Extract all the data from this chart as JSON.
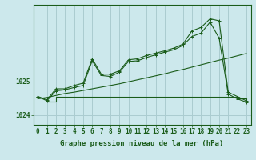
{
  "xlabel": "Graphe pression niveau de la mer (hPa)",
  "background_color": "#cce8ec",
  "grid_color": "#aaccd0",
  "line_color_dark": "#1a5c1a",
  "line_color_light": "#2d8b2d",
  "x_hours": [
    0,
    1,
    2,
    3,
    4,
    5,
    6,
    7,
    8,
    9,
    10,
    11,
    12,
    13,
    14,
    15,
    16,
    17,
    18,
    19,
    20,
    21,
    22,
    23
  ],
  "series_main": [
    1024.55,
    1024.42,
    1024.72,
    1024.75,
    1024.82,
    1024.88,
    1025.62,
    1025.18,
    1025.15,
    1025.28,
    1025.6,
    1025.62,
    1025.72,
    1025.8,
    1025.88,
    1025.95,
    1026.08,
    1026.35,
    1026.45,
    1026.78,
    1026.3,
    1024.62,
    1024.48,
    1024.38
  ],
  "series_max": [
    1024.55,
    1024.45,
    1024.78,
    1024.78,
    1024.88,
    1024.95,
    1025.68,
    1025.22,
    1025.22,
    1025.32,
    1025.65,
    1025.68,
    1025.78,
    1025.85,
    1025.92,
    1026.0,
    1026.12,
    1026.52,
    1026.62,
    1026.88,
    1026.82,
    1024.68,
    1024.55,
    1024.42
  ],
  "series_min": [
    1024.52,
    1024.4,
    1024.55,
    1024.55,
    1024.55,
    1024.55,
    1024.55,
    1024.55,
    1024.55,
    1024.55,
    1024.55,
    1024.55,
    1024.55,
    1024.55,
    1024.55,
    1024.55,
    1024.55,
    1024.55,
    1024.55,
    1024.55,
    1024.55,
    1024.55,
    1024.5,
    1024.38
  ],
  "series_trend": [
    1024.48,
    1024.52,
    1024.58,
    1024.64,
    1024.68,
    1024.73,
    1024.78,
    1024.83,
    1024.88,
    1024.93,
    1024.99,
    1025.05,
    1025.11,
    1025.17,
    1025.23,
    1025.3,
    1025.36,
    1025.43,
    1025.5,
    1025.57,
    1025.64,
    1025.7,
    1025.77,
    1025.84
  ],
  "ylim": [
    1023.7,
    1027.3
  ],
  "yticks": [
    1024,
    1025
  ],
  "tick_fontsize": 5.5,
  "label_fontsize": 6.5
}
